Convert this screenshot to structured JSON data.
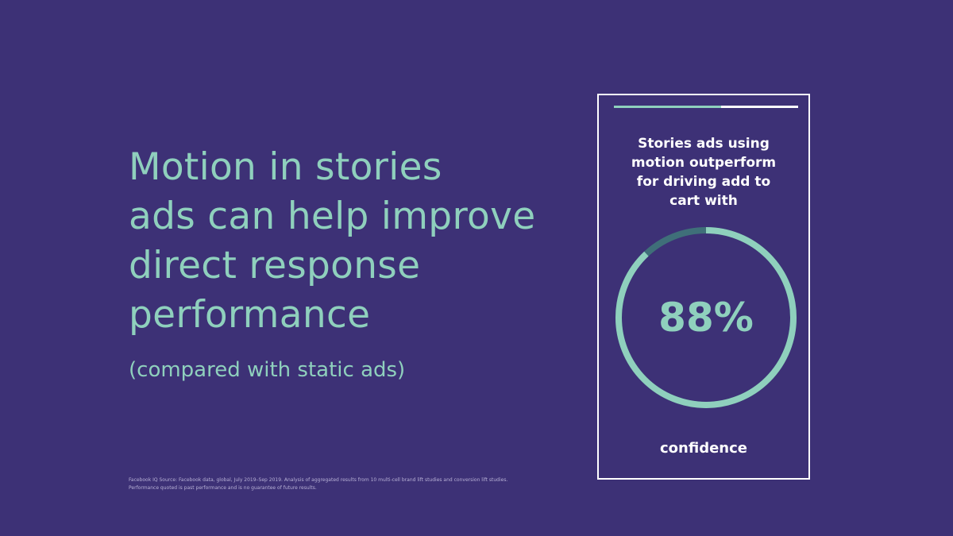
{
  "headline": {
    "lines": [
      "Motion in stories",
      "ads can help improve",
      "direct response",
      "performance"
    ]
  },
  "subhead": "(compared with static ads)",
  "footnote": "Facebook IQ Source: Facebook data, global, July 2019–Sep 2019. Analysis of aggregated results from 10 multi-cell brand lift studies and conversion lift studies. Performance quoted is past performance and is no guarantee of future results.",
  "card": {
    "story_progress_fraction": 0.58,
    "lines": [
      "Stories ads using",
      "motion outperform",
      "for driving add to",
      "cart with"
    ],
    "stat_value": "88%",
    "stat_fraction": 0.88,
    "caption": "confidence"
  },
  "colors": {
    "background": "#3d3176",
    "accent": "#8fd0bd",
    "ring_track": "#3f6f79",
    "text_white": "#ffffff"
  }
}
